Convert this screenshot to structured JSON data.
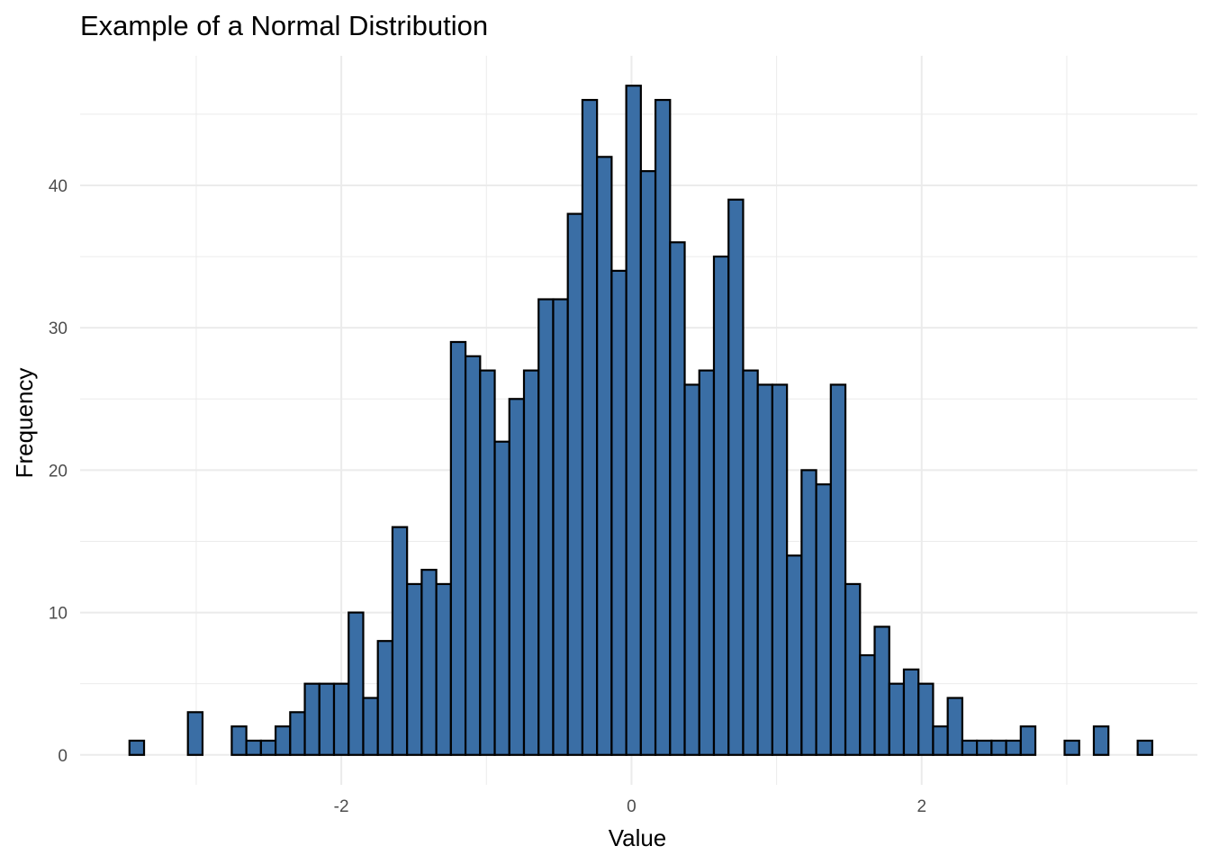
{
  "chart_data": {
    "type": "bar",
    "title": "Example of a Normal Distribution",
    "xlabel": "Value",
    "ylabel": "Frequency",
    "bin_start": -3.46,
    "bin_width": 0.1007,
    "values": [
      1,
      0,
      0,
      0,
      3,
      0,
      0,
      2,
      1,
      1,
      2,
      3,
      5,
      5,
      5,
      10,
      4,
      8,
      16,
      12,
      13,
      12,
      29,
      28,
      27,
      22,
      25,
      27,
      32,
      32,
      38,
      46,
      42,
      34,
      47,
      41,
      46,
      36,
      26,
      27,
      35,
      39,
      27,
      26,
      26,
      14,
      20,
      19,
      26,
      12,
      7,
      9,
      5,
      6,
      5,
      2,
      4,
      1,
      1,
      1,
      1,
      2,
      0,
      0,
      1,
      0,
      2,
      0,
      0,
      1
    ],
    "xlim": [
      -3.8,
      3.9
    ],
    "ylim": [
      -2.1,
      49.1
    ],
    "x_ticks": [
      -2,
      0,
      2
    ],
    "x_tick_labels": [
      "-2",
      "0",
      "2"
    ],
    "y_ticks": [
      0,
      10,
      20,
      30,
      40
    ],
    "y_tick_labels": [
      "0",
      "10",
      "20",
      "30",
      "40"
    ],
    "grid": true,
    "legend": "none",
    "bar_fill": "#3a6ea5",
    "bar_outline": "#000000",
    "grid_color": "#ebebeb"
  }
}
